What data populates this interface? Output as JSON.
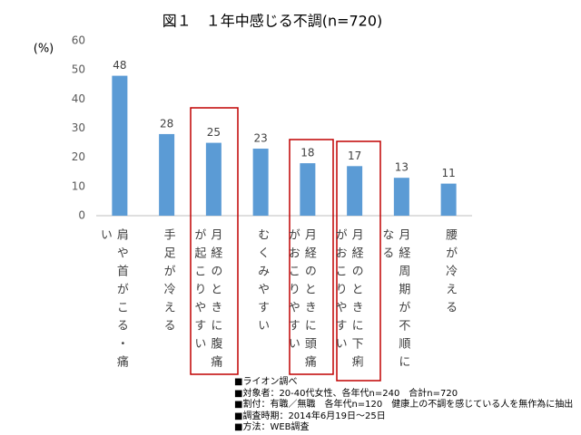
{
  "chart_data": {
    "type": "bar",
    "title": "図１　１年中感じる不調(n=720)",
    "y_label": "(%)",
    "categories": [
      "肩や首がこる・痛い",
      "手足が冷える",
      "月経のときに腹痛が起こりやすい",
      "むくみやすい",
      "月経のときに頭痛がおこりやすい",
      "月経のときに下痢がおこりやすい",
      "月経周期が不順になる",
      "腰が冷える"
    ],
    "values": [
      48,
      28,
      25,
      23,
      18,
      17,
      13,
      11
    ],
    "color": "#5b9bd5",
    "ylim": [
      0,
      60
    ],
    "yticks": [
      0,
      10,
      20,
      30,
      40,
      50,
      60
    ],
    "grid": false,
    "notes": [
      "■ライオン調べ",
      "■対象者：20-40代女性、各年代n=240　合計n=720",
      "■割付：有職／無職　各年代n=120　健康上の不調を感じている人を無作為に抽出",
      "■調査時期：2014年6月19日～25日",
      "■方法：WEB調査"
    ]
  }
}
